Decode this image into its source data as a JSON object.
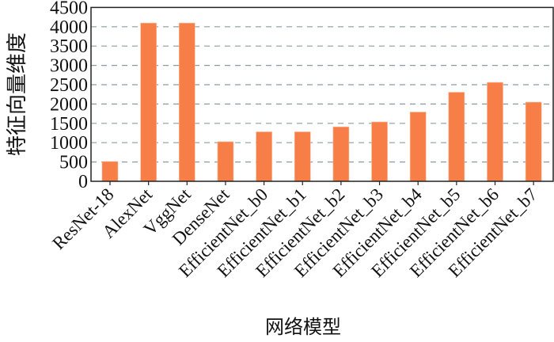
{
  "chart_data": {
    "type": "bar",
    "title": "",
    "xlabel": "网络模型",
    "ylabel": "特征向量维度",
    "categories": [
      "ResNet-18",
      "AlexNet",
      "VggNet",
      "DenseNet",
      "EfficientNet_b0",
      "EfficientNet_b1",
      "EfficientNet_b2",
      "EfficientNet_b3",
      "EfficientNet_b4",
      "EfficientNet_b5",
      "EfficientNet_b6",
      "EfficientNet_b7"
    ],
    "values": [
      512,
      4096,
      4096,
      1024,
      1280,
      1280,
      1408,
      1536,
      1792,
      2304,
      2560,
      2048
    ],
    "ylim": [
      0,
      4500
    ],
    "yticks": [
      0,
      500,
      1000,
      1500,
      2000,
      2500,
      3000,
      3500,
      4000,
      4500
    ],
    "grid": "horizontal dashed",
    "legend": "none",
    "colors": {
      "bar": "#f87e47",
      "grid": "#8a9ba3",
      "axis": "#222222"
    }
  }
}
